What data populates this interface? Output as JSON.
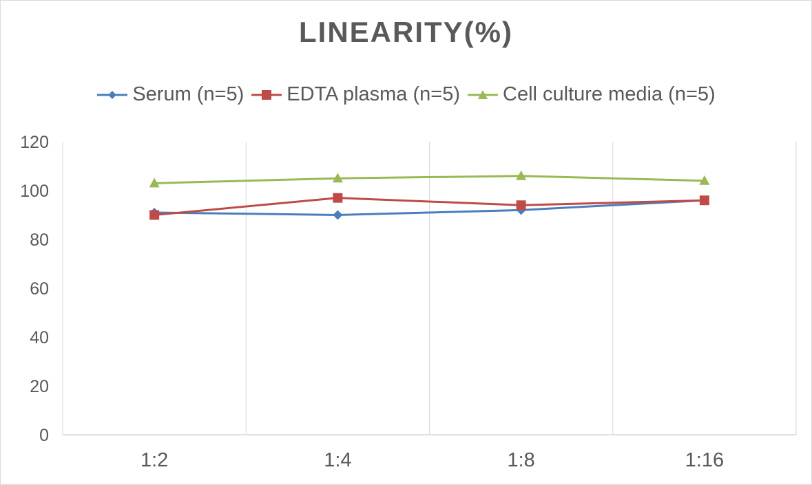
{
  "chart_data": {
    "type": "line",
    "title": "LINEARITY(%)",
    "xlabel": "",
    "ylabel": "",
    "categories": [
      "1:2",
      "1:4",
      "1:8",
      "1:16"
    ],
    "ylim": [
      0,
      120
    ],
    "yticks": [
      0,
      20,
      40,
      60,
      80,
      100,
      120
    ],
    "grid": "vertical category gridlines",
    "legend_position": "top",
    "series": [
      {
        "name": "Serum (n=5)",
        "values": [
          91,
          90,
          92,
          96
        ],
        "color": "#4a7ebb",
        "marker": "diamond"
      },
      {
        "name": "EDTA plasma (n=5)",
        "values": [
          90,
          97,
          94,
          96
        ],
        "color": "#be4b48",
        "marker": "square"
      },
      {
        "name": "Cell culture media (n=5)",
        "values": [
          103,
          105,
          106,
          104
        ],
        "color": "#98b954",
        "marker": "triangle"
      }
    ]
  }
}
